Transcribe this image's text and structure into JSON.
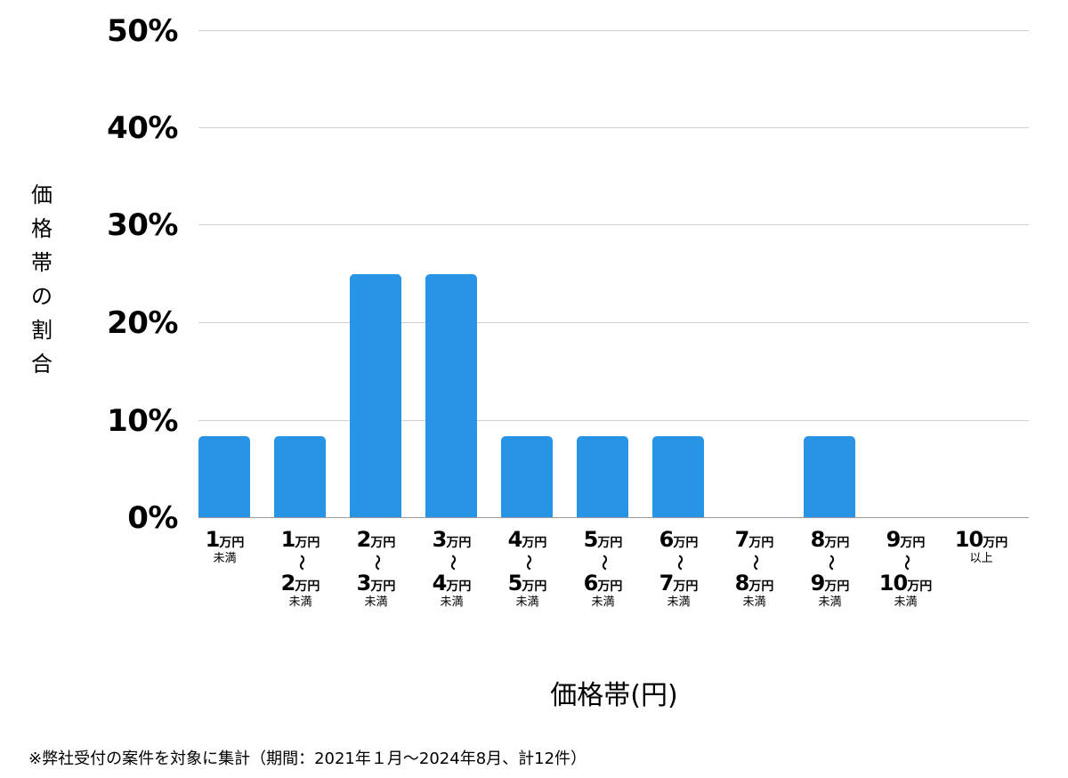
{
  "chart_data": {
    "type": "bar",
    "title": "",
    "xlabel": "価格帯(円)",
    "ylabel": "価格帯の割合",
    "ylim": [
      0,
      50
    ],
    "yticks": [
      "0%",
      "10%",
      "20%",
      "30%",
      "40%",
      "50%"
    ],
    "grid": true,
    "legend": null,
    "categories": [
      "1万円未満",
      "1万円〜2万円未満",
      "2万円〜3万円未満",
      "3万円〜4万円未満",
      "4万円〜5万円未満",
      "5万円〜6万円未満",
      "6万円〜7万円未満",
      "7万円〜8万円未満",
      "8万円〜9万円未満",
      "9万円〜10万円未満",
      "10万円以上"
    ],
    "values": [
      8.33,
      8.33,
      25.0,
      25.0,
      8.33,
      8.33,
      8.33,
      0,
      8.33,
      0,
      0
    ],
    "bar_color": "#2894e6",
    "footnote": "※弊社受付の案件を対象に集計（期間：2021年１月〜2024年8月、計12件）"
  },
  "labels": {
    "ylabel_chars": [
      "価",
      "格",
      "帯",
      "の",
      "割",
      "合"
    ],
    "xlabel": "価格帯(円)",
    "footnote": "※弊社受付の案件を対象に集計（期間：2021年１月〜2024年8月、計12件）",
    "yticks": {
      "t0": "0%",
      "t10": "10%",
      "t20": "20%",
      "t30": "30%",
      "t40": "40%",
      "t50": "50%"
    },
    "unit": "万円",
    "tilde": "〜",
    "below": "未満",
    "above": "以上",
    "x": [
      {
        "from": "1",
        "to": null,
        "suffix": "未満"
      },
      {
        "from": "1",
        "to": "2",
        "suffix": "未満"
      },
      {
        "from": "2",
        "to": "3",
        "suffix": "未満"
      },
      {
        "from": "3",
        "to": "4",
        "suffix": "未満"
      },
      {
        "from": "4",
        "to": "5",
        "suffix": "未満"
      },
      {
        "from": "5",
        "to": "6",
        "suffix": "未満"
      },
      {
        "from": "6",
        "to": "7",
        "suffix": "未満"
      },
      {
        "from": "7",
        "to": "8",
        "suffix": "未満"
      },
      {
        "from": "8",
        "to": "9",
        "suffix": "未満"
      },
      {
        "from": "9",
        "to": "10",
        "suffix": "未満"
      },
      {
        "from": "10",
        "to": null,
        "suffix": "以上"
      }
    ]
  }
}
